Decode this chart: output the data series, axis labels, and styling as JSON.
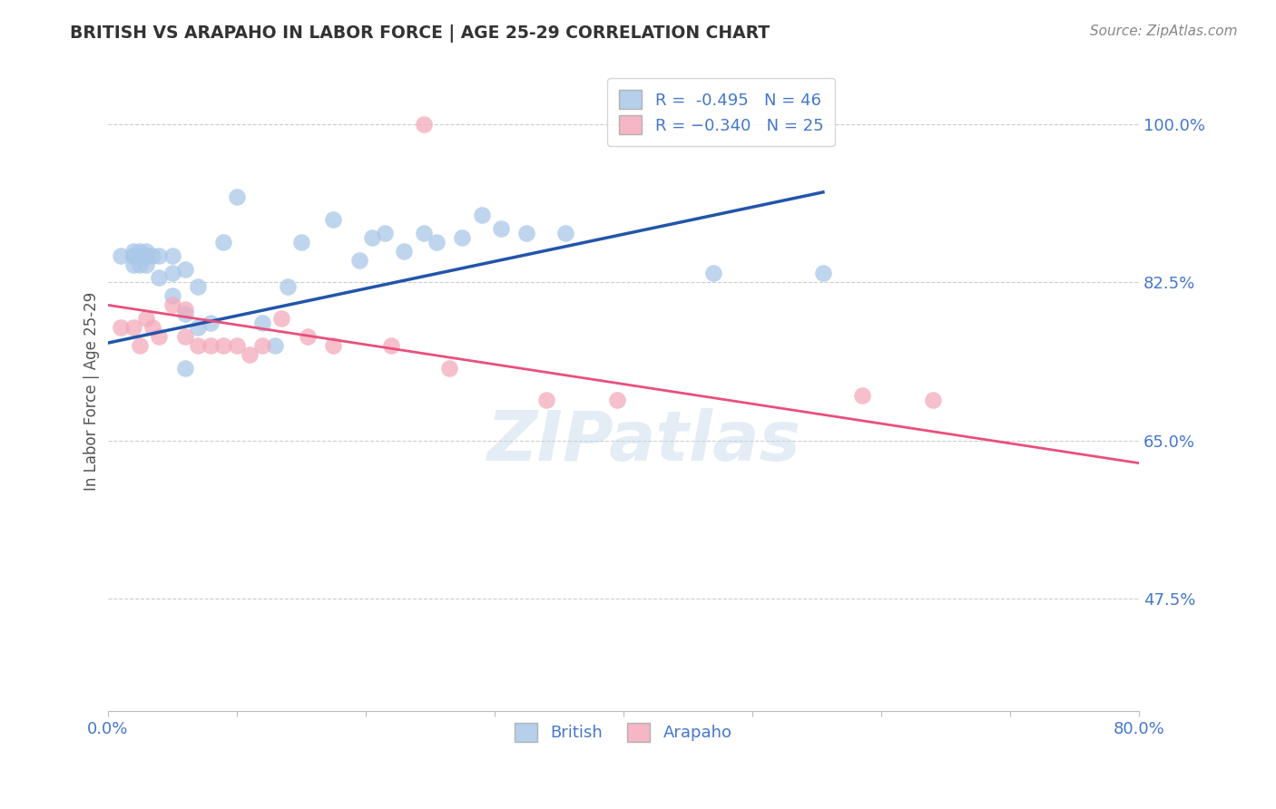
{
  "title": "BRITISH VS ARAPAHO IN LABOR FORCE | AGE 25-29 CORRELATION CHART",
  "source_text": "Source: ZipAtlas.com",
  "watermark": "ZIPatlas",
  "ylabel": "In Labor Force | Age 25-29",
  "xlim": [
    0.0,
    0.8
  ],
  "ylim": [
    0.35,
    1.06
  ],
  "ytick_positions": [
    0.475,
    0.65,
    0.825,
    1.0
  ],
  "ytick_labels": [
    "47.5%",
    "65.0%",
    "82.5%",
    "100.0%"
  ],
  "legend_label_bottom": [
    "British",
    "Arapaho"
  ],
  "british_color": "#aac8e8",
  "arapaho_color": "#f4aabb",
  "british_line_color": "#2255aa",
  "arapaho_line_color": "#e8507a",
  "title_color": "#333333",
  "axis_label_color": "#555555",
  "tick_color": "#4477cc",
  "source_color": "#888888",
  "british_x": [
    0.01,
    0.02,
    0.02,
    0.02,
    0.02,
    0.025,
    0.025,
    0.025,
    0.025,
    0.03,
    0.03,
    0.03,
    0.03,
    0.03,
    0.035,
    0.04,
    0.04,
    0.05,
    0.05,
    0.05,
    0.06,
    0.06,
    0.06,
    0.07,
    0.07,
    0.08,
    0.09,
    0.1,
    0.12,
    0.13,
    0.14,
    0.15,
    0.175,
    0.195,
    0.205,
    0.215,
    0.23,
    0.245,
    0.255,
    0.275,
    0.29,
    0.305,
    0.325,
    0.355,
    0.47,
    0.555
  ],
  "british_y": [
    0.855,
    0.845,
    0.86,
    0.855,
    0.855,
    0.845,
    0.86,
    0.855,
    0.855,
    0.855,
    0.86,
    0.855,
    0.845,
    0.855,
    0.855,
    0.83,
    0.855,
    0.81,
    0.835,
    0.855,
    0.73,
    0.79,
    0.84,
    0.775,
    0.82,
    0.78,
    0.87,
    0.92,
    0.78,
    0.755,
    0.82,
    0.87,
    0.895,
    0.85,
    0.875,
    0.88,
    0.86,
    0.88,
    0.87,
    0.875,
    0.9,
    0.885,
    0.88,
    0.88,
    0.835,
    0.835
  ],
  "arapaho_x": [
    0.01,
    0.02,
    0.025,
    0.03,
    0.035,
    0.04,
    0.05,
    0.06,
    0.06,
    0.07,
    0.08,
    0.09,
    0.1,
    0.11,
    0.12,
    0.135,
    0.155,
    0.175,
    0.22,
    0.245,
    0.265,
    0.34,
    0.395,
    0.585,
    0.64
  ],
  "arapaho_y": [
    0.775,
    0.775,
    0.755,
    0.785,
    0.775,
    0.765,
    0.8,
    0.795,
    0.765,
    0.755,
    0.755,
    0.755,
    0.755,
    0.745,
    0.755,
    0.785,
    0.765,
    0.755,
    0.755,
    1.0,
    0.73,
    0.695,
    0.695,
    0.7,
    0.695
  ],
  "british_trend_x": [
    0.0,
    0.555
  ],
  "british_trend_y": [
    0.758,
    0.925
  ],
  "arapaho_trend_x": [
    0.0,
    0.8
  ],
  "arapaho_trend_y": [
    0.8,
    0.625
  ]
}
